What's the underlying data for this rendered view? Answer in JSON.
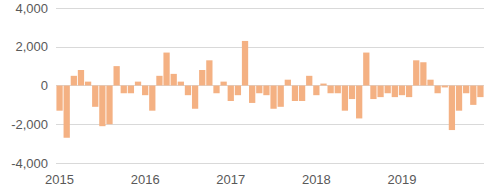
{
  "chart_data": {
    "type": "bar",
    "categories": [
      "2015",
      null,
      null,
      null,
      null,
      null,
      null,
      null,
      null,
      null,
      null,
      null,
      "2016",
      null,
      null,
      null,
      null,
      null,
      null,
      null,
      null,
      null,
      null,
      null,
      "2017",
      null,
      null,
      null,
      null,
      null,
      null,
      null,
      null,
      null,
      null,
      null,
      "2018",
      null,
      null,
      null,
      null,
      null,
      null,
      null,
      null,
      null,
      null,
      null,
      "2019",
      null,
      null,
      null,
      null,
      null,
      null,
      null,
      null,
      null,
      null,
      null
    ],
    "values": [
      -1300,
      -2700,
      500,
      800,
      200,
      -1100,
      -2100,
      -2000,
      1000,
      -400,
      -400,
      200,
      -500,
      -1300,
      500,
      1700,
      600,
      200,
      -500,
      -1200,
      800,
      1300,
      -400,
      200,
      -800,
      -500,
      2300,
      -900,
      -400,
      -500,
      -1200,
      -1100,
      300,
      -800,
      -800,
      500,
      -500,
      100,
      -400,
      -400,
      -1300,
      -700,
      -1700,
      1700,
      -700,
      -600,
      -400,
      -600,
      -500,
      -600,
      1300,
      1200,
      300,
      -400,
      -100,
      -2300,
      -1300,
      -400,
      -1000,
      -600
    ],
    "color": "#f4b183",
    "ylim": [
      -4000,
      4000
    ],
    "yticks": [
      {
        "value": -4000,
        "label": "-4,000"
      },
      {
        "value": -2000,
        "label": "-2,000"
      },
      0,
      {
        "value": 2000,
        "label": "2,000"
      },
      {
        "value": 4000,
        "label": "4,000"
      }
    ],
    "grid": true
  }
}
